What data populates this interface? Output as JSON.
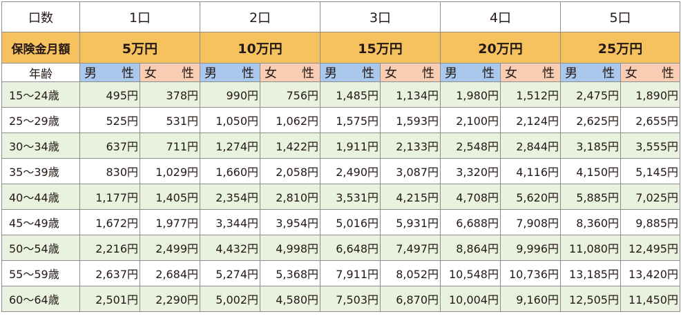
{
  "header": {
    "label": "口数",
    "units": [
      "1口",
      "2口",
      "3口",
      "4口",
      "5口"
    ]
  },
  "amount_row": {
    "label": "保険金月額",
    "amounts": [
      "5万円",
      "10万円",
      "15万円",
      "20万円",
      "25万円"
    ]
  },
  "sex_row": {
    "label": "年齢",
    "male": [
      "男",
      "性"
    ],
    "female": [
      "女",
      "性"
    ]
  },
  "rows": [
    {
      "age": "15〜24歳",
      "values": [
        "495円",
        "378円",
        "990円",
        "756円",
        "1,485円",
        "1,134円",
        "1,980円",
        "1,512円",
        "2,475円",
        "1,890円"
      ]
    },
    {
      "age": "25〜29歳",
      "values": [
        "525円",
        "531円",
        "1,050円",
        "1,062円",
        "1,575円",
        "1,593円",
        "2,100円",
        "2,124円",
        "2,625円",
        "2,655円"
      ]
    },
    {
      "age": "30〜34歳",
      "values": [
        "637円",
        "711円",
        "1,274円",
        "1,422円",
        "1,911円",
        "2,133円",
        "2,548円",
        "2,844円",
        "3,185円",
        "3,555円"
      ]
    },
    {
      "age": "35〜39歳",
      "values": [
        "830円",
        "1,029円",
        "1,660円",
        "2,058円",
        "2,490円",
        "3,087円",
        "3,320円",
        "4,116円",
        "4,150円",
        "5,145円"
      ]
    },
    {
      "age": "40〜44歳",
      "values": [
        "1,177円",
        "1,405円",
        "2,354円",
        "2,810円",
        "3,531円",
        "4,215円",
        "4,708円",
        "5,620円",
        "5,885円",
        "7,025円"
      ]
    },
    {
      "age": "45〜49歳",
      "values": [
        "1,672円",
        "1,977円",
        "3,344円",
        "3,954円",
        "5,016円",
        "5,931円",
        "6,688円",
        "7,908円",
        "8,360円",
        "9,885円"
      ]
    },
    {
      "age": "50〜54歳",
      "values": [
        "2,216円",
        "2,499円",
        "4,432円",
        "4,998円",
        "6,648円",
        "7,497円",
        "8,864円",
        "9,996円",
        "11,080円",
        "12,495円"
      ]
    },
    {
      "age": "55〜59歳",
      "values": [
        "2,637円",
        "2,684円",
        "5,274円",
        "5,368円",
        "7,911円",
        "8,052円",
        "10,548円",
        "10,736円",
        "13,185円",
        "13,420円"
      ]
    },
    {
      "age": "60〜64歳",
      "values": [
        "2,501円",
        "2,290円",
        "5,002円",
        "4,580円",
        "7,503円",
        "6,870円",
        "10,004円",
        "9,160円",
        "12,505円",
        "11,450円"
      ]
    }
  ]
}
